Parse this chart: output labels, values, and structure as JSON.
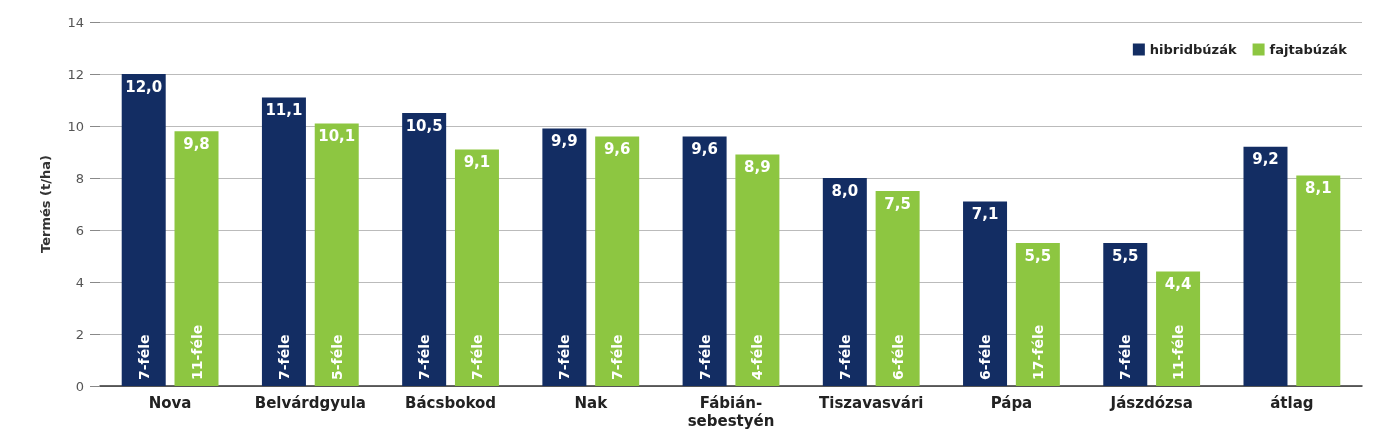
{
  "chart_data": {
    "type": "bar",
    "ylabel": "Termés (t/ha)",
    "categories": [
      "Nova",
      "Belvárdgyula",
      "Bácsbokod",
      "Nak",
      "Fábián-sebestyén",
      "Tiszavasvári",
      "Pápa",
      "Jászdózsa",
      "átlag"
    ],
    "series": [
      {
        "name": "hibridbúzák",
        "color": "#132d63",
        "values": [
          12.0,
          11.1,
          10.5,
          9.9,
          9.6,
          8.0,
          7.1,
          5.5,
          9.2
        ],
        "value_labels": [
          "12,0",
          "11,1",
          "10,5",
          "9,9",
          "9,6",
          "8,0",
          "7,1",
          "5,5",
          "9,2"
        ]
      },
      {
        "name": "fajtabúzák",
        "color": "#8dc641",
        "values": [
          9.8,
          10.1,
          9.1,
          9.6,
          8.9,
          7.5,
          5.5,
          4.4,
          8.1
        ],
        "value_labels": [
          "9,8",
          "10,1",
          "9,1",
          "9,6",
          "8,9",
          "7,5",
          "5,5",
          "4,4",
          "8,1"
        ]
      }
    ],
    "annotations": [
      "7-féle",
      "11-féle",
      "7-féle",
      "5-féle",
      "7-féle",
      "7-féle",
      "7-féle",
      "7-féle",
      "7-féle",
      "4-féle",
      "7-féle",
      "6-féle",
      "6-féle",
      "17-féle",
      "7-féle",
      "11-féle"
    ],
    "ylim": [
      0,
      14
    ],
    "yticks": [
      0,
      2,
      4,
      6,
      8,
      10,
      12,
      14
    ],
    "grid": "y",
    "legend": "top right"
  }
}
